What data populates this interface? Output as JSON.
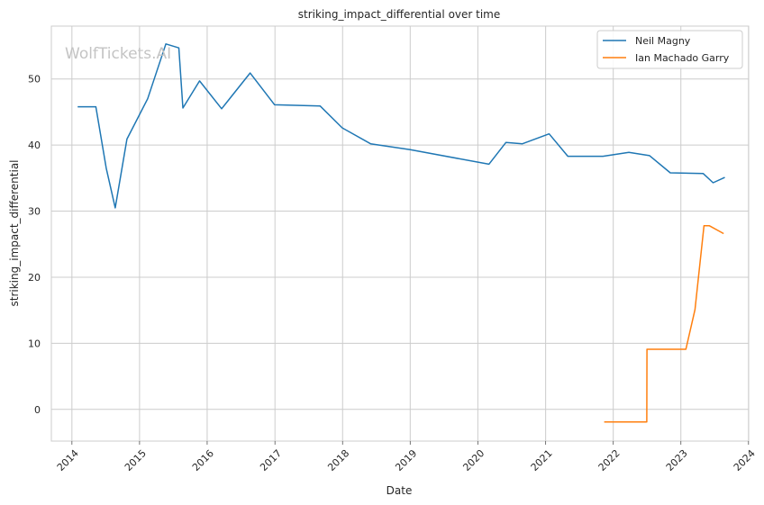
{
  "chart_data": {
    "type": "line",
    "title": "striking_impact_differential over time",
    "xlabel": "Date",
    "ylabel": "striking_impact_differential",
    "watermark": "WolfTickets.AI",
    "xlim": [
      "2013-09-12",
      "2024-01-02"
    ],
    "ylim": [
      -4.8,
      58
    ],
    "x_ticks": [
      "2014-01-01",
      "2015-01-01",
      "2016-01-01",
      "2017-01-01",
      "2018-01-01",
      "2019-01-01",
      "2020-01-01",
      "2021-01-01",
      "2022-01-01",
      "2023-01-01",
      "2024-01-01"
    ],
    "x_tick_labels": [
      "2014",
      "2015",
      "2016",
      "2017",
      "2018",
      "2019",
      "2020",
      "2021",
      "2022",
      "2023",
      "2024"
    ],
    "y_ticks": [
      0,
      10,
      20,
      30,
      40,
      50
    ],
    "y_tick_labels": [
      "0",
      "10",
      "20",
      "30",
      "40",
      "50"
    ],
    "grid": true,
    "legend_position": "top-right",
    "series": [
      {
        "name": "Neil Magny",
        "color": "#1f77b4",
        "points": [
          [
            "2014-02-01",
            45.8
          ],
          [
            "2014-05-10",
            45.8
          ],
          [
            "2014-07-05",
            36.5
          ],
          [
            "2014-08-23",
            30.5
          ],
          [
            "2014-10-25",
            40.9
          ],
          [
            "2015-02-14",
            47.0
          ],
          [
            "2015-05-23",
            55.3
          ],
          [
            "2015-08-01",
            54.7
          ],
          [
            "2015-08-23",
            45.6
          ],
          [
            "2015-11-21",
            49.7
          ],
          [
            "2016-03-19",
            45.5
          ],
          [
            "2016-08-20",
            50.9
          ],
          [
            "2016-12-30",
            46.1
          ],
          [
            "2017-09-02",
            45.9
          ],
          [
            "2017-12-30",
            42.6
          ],
          [
            "2018-06-01",
            40.2
          ],
          [
            "2019-01-01",
            39.3
          ],
          [
            "2020-03-01",
            37.1
          ],
          [
            "2020-06-01",
            40.4
          ],
          [
            "2020-08-29",
            40.2
          ],
          [
            "2021-01-20",
            41.7
          ],
          [
            "2021-05-01",
            38.3
          ],
          [
            "2021-11-06",
            38.3
          ],
          [
            "2022-03-26",
            38.9
          ],
          [
            "2022-07-16",
            38.4
          ],
          [
            "2022-11-05",
            35.8
          ],
          [
            "2023-05-01",
            35.7
          ],
          [
            "2023-06-24",
            34.3
          ],
          [
            "2023-08-26",
            35.1
          ]
        ]
      },
      {
        "name": "Ian Machado Garry",
        "color": "#ff7f0e",
        "points": [
          [
            "2021-11-13",
            -1.9
          ],
          [
            "2022-07-01",
            -1.9
          ],
          [
            "2022-07-02",
            9.1
          ],
          [
            "2023-01-28",
            9.1
          ],
          [
            "2023-03-18",
            15.1
          ],
          [
            "2023-05-06",
            27.8
          ],
          [
            "2023-06-03",
            27.8
          ],
          [
            "2023-08-20",
            26.6
          ]
        ]
      }
    ]
  }
}
